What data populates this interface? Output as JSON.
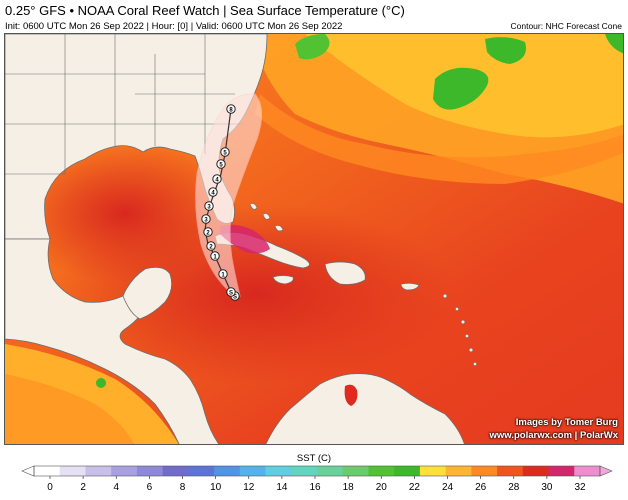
{
  "header": {
    "title": "0.25° GFS • NOAA Coral Reef Watch | Sea Surface Temperature (°C)",
    "subtitle": "Init: 0600 UTC Mon 26 Sep 2022 | Hour: [0] | Valid: 0600 UTC Mon 26 Sep 2022",
    "contour_note": "Contour: NHC Forecast Cone"
  },
  "watermark": {
    "line1": "Images by Tomer Burg",
    "line2": "www.polarwx.com | PolarWx"
  },
  "colorbar": {
    "title": "SST (C)",
    "ticks": [
      "0",
      "2",
      "4",
      "6",
      "8",
      "10",
      "12",
      "14",
      "16",
      "18",
      "20",
      "22",
      "24",
      "26",
      "28",
      "30",
      "32"
    ],
    "colors": [
      "#ffffff",
      "#e6e0f5",
      "#c8c0ea",
      "#a9a0df",
      "#8f88d8",
      "#6f6ccb",
      "#5c74d8",
      "#5293e6",
      "#54b4ea",
      "#5cd0e0",
      "#61d6bf",
      "#6ad19b",
      "#6ccb6c",
      "#52c232",
      "#3cb82a",
      "#ffe135",
      "#ffb52d",
      "#ff8a21",
      "#f5531e",
      "#e02a20",
      "#d8246a",
      "#ec8ed0"
    ]
  },
  "legend_colors": {
    "land": "#f5efe6",
    "borders": "#6d6d6d",
    "cone": "#ffe0dc",
    "track": "#333333"
  },
  "track_points": [
    {
      "label": "S"
    },
    {
      "label": "S"
    },
    {
      "label": "1"
    },
    {
      "label": "1"
    },
    {
      "label": "2"
    },
    {
      "label": "2"
    },
    {
      "label": "3"
    },
    {
      "label": "3"
    },
    {
      "label": "4"
    },
    {
      "label": "4"
    },
    {
      "label": "5"
    },
    {
      "label": "5"
    },
    {
      "label": "8"
    }
  ]
}
